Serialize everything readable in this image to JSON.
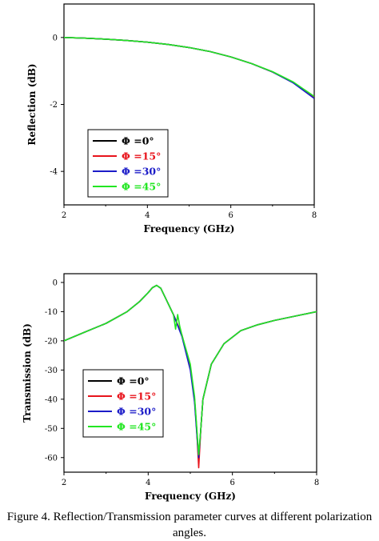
{
  "caption": {
    "line1": "Figure 4. Reflection/Transmission parameter curves at different polarization",
    "line2": "angles."
  },
  "colors": {
    "phi0": "#000000",
    "phi15": "#e8141c",
    "phi30": "#1c1cc8",
    "phi45": "#22e622"
  },
  "chart_data": [
    {
      "type": "line",
      "title": "",
      "xlabel": "Frequency (GHz)",
      "ylabel": "Reflection (dB)",
      "xlim": [
        2,
        8
      ],
      "ylim": [
        -5,
        1
      ],
      "x_ticks": [
        "2",
        "4",
        "6",
        "8"
      ],
      "y_ticks": [
        "0",
        "-2",
        "-4"
      ],
      "legend_position": "bottom-left",
      "series": [
        {
          "name": "Φ =0°",
          "color": "#000000",
          "x": [
            2,
            2.5,
            3,
            3.5,
            4,
            4.5,
            5,
            5.5,
            6,
            6.5,
            7,
            7.5,
            8
          ],
          "y": [
            0,
            -0.02,
            -0.05,
            -0.09,
            -0.14,
            -0.21,
            -0.3,
            -0.42,
            -0.58,
            -0.78,
            -1.03,
            -1.35,
            -1.8
          ]
        },
        {
          "name": "Φ =15°",
          "color": "#e8141c",
          "x": [
            2,
            2.5,
            3,
            3.5,
            4,
            4.5,
            5,
            5.5,
            6,
            6.5,
            7,
            7.5,
            8
          ],
          "y": [
            0,
            -0.02,
            -0.05,
            -0.09,
            -0.14,
            -0.21,
            -0.3,
            -0.42,
            -0.58,
            -0.78,
            -1.03,
            -1.35,
            -1.8
          ]
        },
        {
          "name": "Φ =30°",
          "color": "#1c1cc8",
          "x": [
            2,
            2.5,
            3,
            3.5,
            4,
            4.5,
            5,
            5.5,
            6,
            6.5,
            7,
            7.5,
            8
          ],
          "y": [
            0,
            -0.02,
            -0.05,
            -0.09,
            -0.14,
            -0.21,
            -0.3,
            -0.42,
            -0.58,
            -0.78,
            -1.03,
            -1.36,
            -1.82
          ]
        },
        {
          "name": "Φ =45°",
          "color": "#22e622",
          "x": [
            2,
            2.5,
            3,
            3.5,
            4,
            4.5,
            5,
            5.5,
            6,
            6.5,
            7,
            7.5,
            8
          ],
          "y": [
            0,
            -0.02,
            -0.05,
            -0.09,
            -0.14,
            -0.21,
            -0.3,
            -0.42,
            -0.58,
            -0.78,
            -1.02,
            -1.33,
            -1.76
          ]
        }
      ]
    },
    {
      "type": "line",
      "title": "",
      "xlabel": "Frequency (GHz)",
      "ylabel": "Transmission (dB)",
      "xlim": [
        2,
        8
      ],
      "ylim": [
        -65,
        3
      ],
      "x_ticks": [
        "2",
        "4",
        "6",
        "8"
      ],
      "y_ticks": [
        "0",
        "-10",
        "-20",
        "-30",
        "-40",
        "-50",
        "-60"
      ],
      "legend_position": "bottom-left",
      "series": [
        {
          "name": "Φ =0°",
          "color": "#000000",
          "x": [
            2,
            2.5,
            3,
            3.5,
            3.8,
            4,
            4.1,
            4.2,
            4.3,
            4.4,
            4.6,
            4.8,
            5,
            5.1,
            5.15,
            5.2,
            5.25,
            5.3,
            5.5,
            5.8,
            6.2,
            6.6,
            7,
            7.5,
            8
          ],
          "y": [
            -20,
            -17,
            -14,
            -10,
            -6.5,
            -3.5,
            -1.8,
            -1,
            -2,
            -5,
            -11,
            -18,
            -29,
            -40,
            -50,
            -61,
            -50,
            -40,
            -28,
            -21,
            -16.5,
            -14.5,
            -13,
            -11.5,
            -10
          ]
        },
        {
          "name": "Φ =15°",
          "color": "#e8141c",
          "x": [
            2,
            2.5,
            3,
            3.5,
            3.8,
            4,
            4.1,
            4.2,
            4.3,
            4.4,
            4.6,
            4.8,
            5,
            5.1,
            5.15,
            5.2,
            5.25,
            5.3,
            5.5,
            5.8,
            6.2,
            6.6,
            7,
            7.5,
            8
          ],
          "y": [
            -20,
            -17,
            -14,
            -10,
            -6.5,
            -3.5,
            -1.8,
            -1,
            -2,
            -5,
            -11,
            -18,
            -29,
            -40,
            -50,
            -63.5,
            -50,
            -40,
            -28,
            -21,
            -16.5,
            -14.5,
            -13,
            -11.5,
            -10
          ]
        },
        {
          "name": "Φ =30°",
          "color": "#1c1cc8",
          "x": [
            2,
            2.5,
            3,
            3.5,
            3.8,
            4,
            4.1,
            4.2,
            4.3,
            4.4,
            4.6,
            4.8,
            5,
            5.1,
            5.15,
            5.2,
            5.25,
            5.3,
            5.5,
            5.8,
            6.2,
            6.6,
            7,
            7.5,
            8
          ],
          "y": [
            -20,
            -17,
            -14,
            -10,
            -6.5,
            -3.5,
            -1.8,
            -1,
            -2,
            -5,
            -11,
            -18.5,
            -30,
            -41,
            -51,
            -60,
            -50,
            -40,
            -28,
            -21,
            -16.5,
            -14.5,
            -13,
            -11.5,
            -10
          ]
        },
        {
          "name": "Φ =45°",
          "color": "#22e622",
          "x": [
            2,
            2.5,
            3,
            3.5,
            3.8,
            4,
            4.1,
            4.2,
            4.3,
            4.4,
            4.6,
            4.65,
            4.7,
            4.75,
            4.8,
            5,
            5.1,
            5.15,
            5.2,
            5.25,
            5.3,
            5.5,
            5.8,
            6.2,
            6.6,
            7,
            7.5,
            8
          ],
          "y": [
            -20,
            -17,
            -14,
            -10,
            -6.5,
            -3.5,
            -1.8,
            -1,
            -2,
            -5,
            -11,
            -16,
            -11,
            -15,
            -18,
            -28,
            -39,
            -49,
            -59,
            -50,
            -40,
            -28,
            -21,
            -16.5,
            -14.5,
            -13,
            -11.5,
            -10
          ]
        }
      ]
    }
  ]
}
